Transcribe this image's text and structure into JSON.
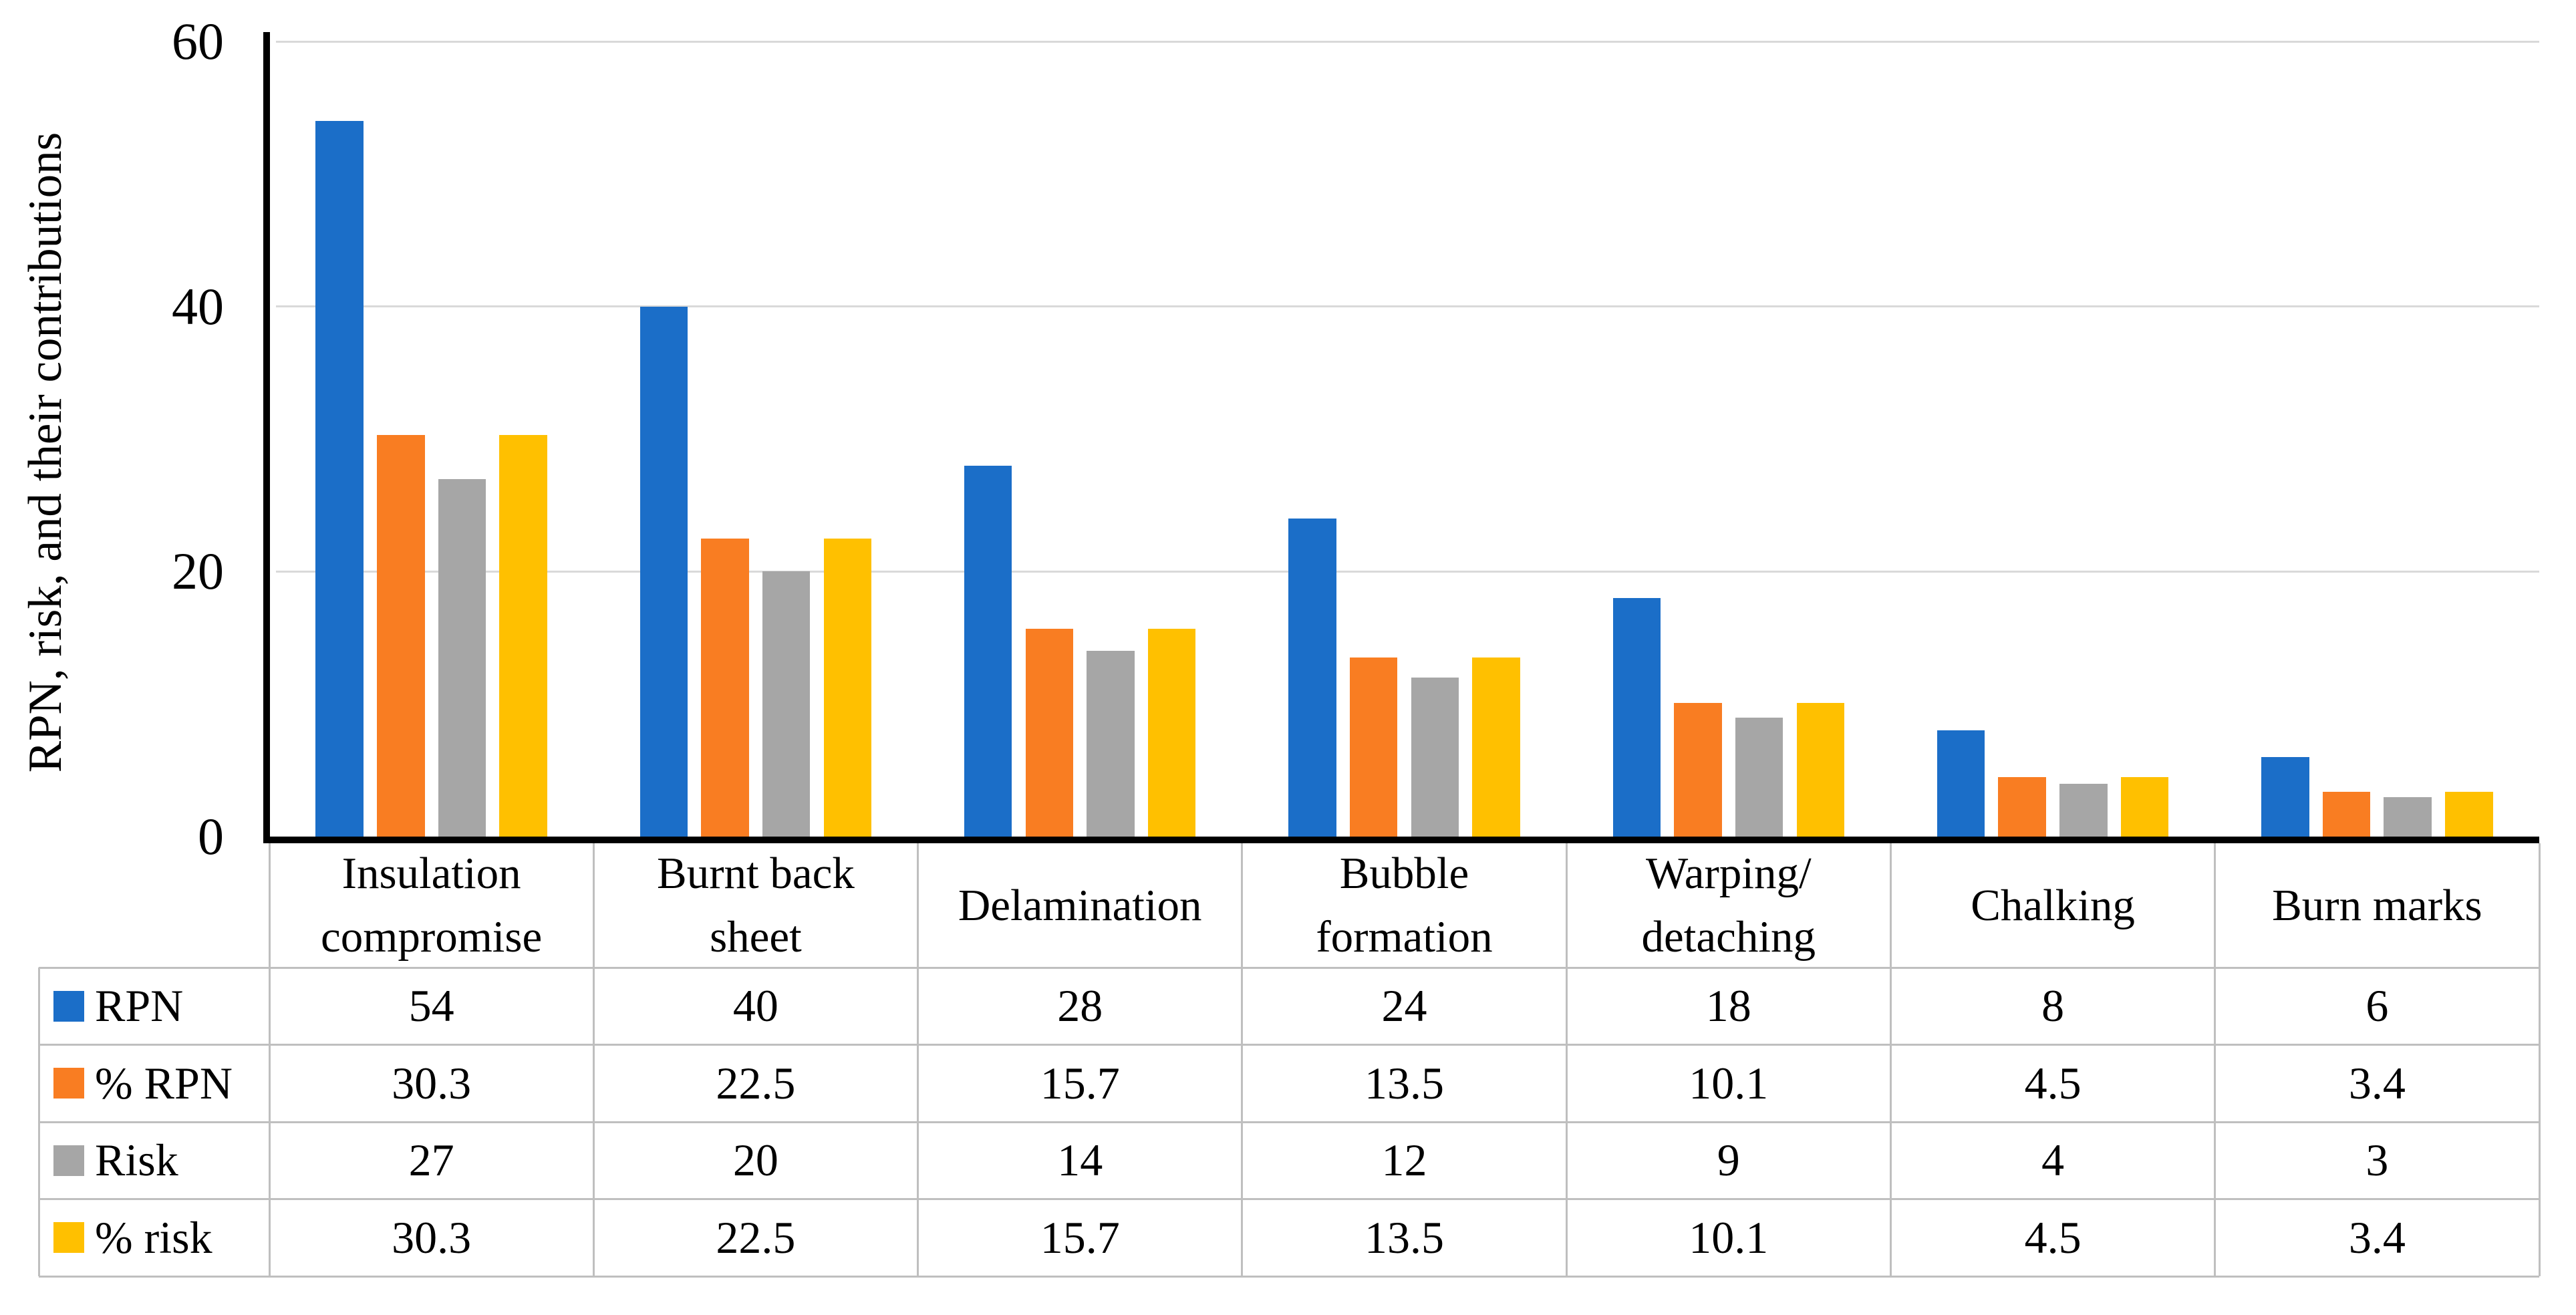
{
  "chart_data": {
    "type": "bar",
    "title": "",
    "ylabel": "RPN, risk, and their contributions",
    "xlabel": "",
    "ylim": [
      0,
      60
    ],
    "yticks": [
      0,
      20,
      40,
      60
    ],
    "grid": true,
    "legend_position": "table-rows-left",
    "categories": [
      "Insulation compromise",
      "Burnt back sheet",
      "Delamination",
      "Bubble formation",
      "Warping/detaching",
      "Chalking",
      "Burn marks"
    ],
    "category_label_lines": [
      [
        "Insulation",
        "compromise"
      ],
      [
        "Burnt back",
        "sheet"
      ],
      [
        "Delamination"
      ],
      [
        "Bubble",
        "formation"
      ],
      [
        "Warping/",
        "detaching"
      ],
      [
        "Chalking"
      ],
      [
        "Burn marks"
      ]
    ],
    "series": [
      {
        "name": "RPN",
        "color": "#1B6EC8",
        "values": [
          54,
          40,
          28,
          24,
          18,
          8,
          6
        ]
      },
      {
        "name": "% RPN",
        "color": "#F97D22",
        "values": [
          30.3,
          22.5,
          15.7,
          13.5,
          10.1,
          4.5,
          3.4
        ]
      },
      {
        "name": "Risk",
        "color": "#A6A6A6",
        "values": [
          27,
          20,
          14,
          12,
          9,
          4,
          3
        ]
      },
      {
        "name": "% risk",
        "color": "#FFC000",
        "values": [
          30.3,
          22.5,
          15.7,
          13.5,
          10.1,
          4.5,
          3.4
        ]
      }
    ],
    "colors": {
      "axis": "#000000",
      "gridline": "#D9D9D9",
      "table_border": "#BFBFBF",
      "text": "#000000",
      "background": "#FFFFFF"
    }
  }
}
